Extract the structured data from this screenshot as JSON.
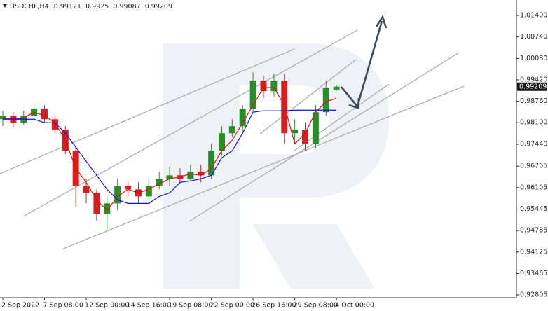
{
  "chart_data": {
    "type": "candlestick",
    "title": "USDCHF,H4",
    "categories": [
      "2 Sep 2022",
      null,
      null,
      null,
      "7 Sep 08:00",
      null,
      null,
      null,
      "12 Sep 00:00",
      null,
      null,
      null,
      "14 Sep 16:00",
      null,
      null,
      null,
      "19 Sep 08:00",
      null,
      null,
      null,
      "22 Sep 00:00",
      null,
      null,
      null,
      "26 Sep 16:00",
      null,
      null,
      null,
      "29 Sep 08:00",
      null,
      null,
      null,
      "4 Oct 00:00"
    ],
    "open": [
      0.98208,
      0.98316,
      0.981,
      0.98316,
      0.98532,
      0.98208,
      0.97885,
      0.97238,
      0.96159,
      0.95943,
      0.95296,
      0.9562,
      0.96159,
      0.96051,
      0.95835,
      0.96159,
      0.96375,
      0.96483,
      0.96375,
      0.9659,
      0.96483,
      0.97238,
      0.97777,
      0.97992,
      0.98532,
      0.99394,
      0.99071,
      0.99394,
      0.97777,
      0.97885,
      0.97453,
      0.98424,
      0.99121
    ],
    "high": [
      0.98467,
      0.98424,
      0.98467,
      0.9864,
      0.9864,
      0.98316,
      0.97992,
      0.97345,
      0.96375,
      0.96051,
      0.95835,
      0.96375,
      0.9631,
      0.96267,
      0.96375,
      0.9659,
      0.96741,
      0.96698,
      0.96806,
      0.96806,
      0.97453,
      0.97992,
      0.98208,
      0.9864,
      0.99653,
      0.99545,
      0.9961,
      0.9961,
      0.98208,
      0.981,
      0.9864,
      0.99394,
      0.9925
    ],
    "low": [
      0.97992,
      0.97949,
      0.98035,
      0.98208,
      0.981,
      0.97777,
      0.9713,
      0.95512,
      0.9562,
      0.95081,
      0.948,
      0.95404,
      0.95835,
      0.9562,
      0.95728,
      0.96051,
      0.96159,
      0.96224,
      0.9631,
      0.96267,
      0.96375,
      0.97087,
      0.97669,
      0.9782,
      0.98424,
      0.98855,
      0.98898,
      0.97453,
      0.97453,
      0.97238,
      0.97302,
      0.98316,
      0.99087
    ],
    "close": [
      0.98316,
      0.981,
      0.98316,
      0.98532,
      0.98208,
      0.97885,
      0.97238,
      0.96159,
      0.95943,
      0.95296,
      0.9562,
      0.96159,
      0.96051,
      0.95835,
      0.96159,
      0.96375,
      0.96483,
      0.96375,
      0.9659,
      0.96483,
      0.97238,
      0.97777,
      0.97992,
      0.98532,
      0.99394,
      0.99071,
      0.99394,
      0.97777,
      0.97885,
      0.97453,
      0.98424,
      0.99179,
      0.99209
    ],
    "up_color": "#2a8f2a",
    "down_color": "#d61e1e",
    "lines": [
      {
        "color": "#e01010",
        "values": [
          0.98251,
          0.98208,
          0.98251,
          0.98424,
          0.98316,
          0.981,
          0.97561,
          0.96698,
          0.96267,
          0.95728,
          0.95404,
          0.95835,
          0.96051,
          0.95943,
          0.96051,
          0.96224,
          0.96375,
          0.96439,
          0.96526,
          0.96483,
          0.96698,
          0.97238,
          0.97561,
          0.981,
          0.9864,
          0.99179,
          0.99179,
          0.9864,
          0.97453,
          0.97777,
          0.98424,
          0.98747,
          0.98855
        ]
      },
      {
        "color": "#1010e0",
        "values": [
          0.98208,
          0.98208,
          0.98208,
          0.98208,
          0.981,
          0.981,
          0.97777,
          0.97345,
          0.96914,
          0.96483,
          0.96051,
          0.95728,
          0.9562,
          0.9562,
          0.9562,
          0.95835,
          0.95943,
          0.96267,
          0.9631,
          0.96375,
          0.96483,
          0.97022,
          0.97238,
          0.97777,
          0.98424,
          0.98467,
          0.98467,
          0.98467,
          0.98488,
          0.98488,
          0.98488,
          0.98488,
          0.98488
        ]
      }
    ],
    "ylim": [
      0.9272,
      1.01875
    ],
    "yticks": [
      {
        "value": 1.014,
        "label": "1.01400"
      },
      {
        "value": 1.0074,
        "label": "1.00740"
      },
      {
        "value": 1.0008,
        "label": "1.00080"
      },
      {
        "value": 0.9942,
        "label": "0.99420"
      },
      {
        "value": 0.9876,
        "label": "0.98760"
      },
      {
        "value": 0.981,
        "label": "0.98100"
      },
      {
        "value": 0.9744,
        "label": "0.97440"
      },
      0.96765,
      0.96105,
      0.95445,
      0.94785,
      0.94125,
      0.93465,
      0.92805
    ]
  }
}
